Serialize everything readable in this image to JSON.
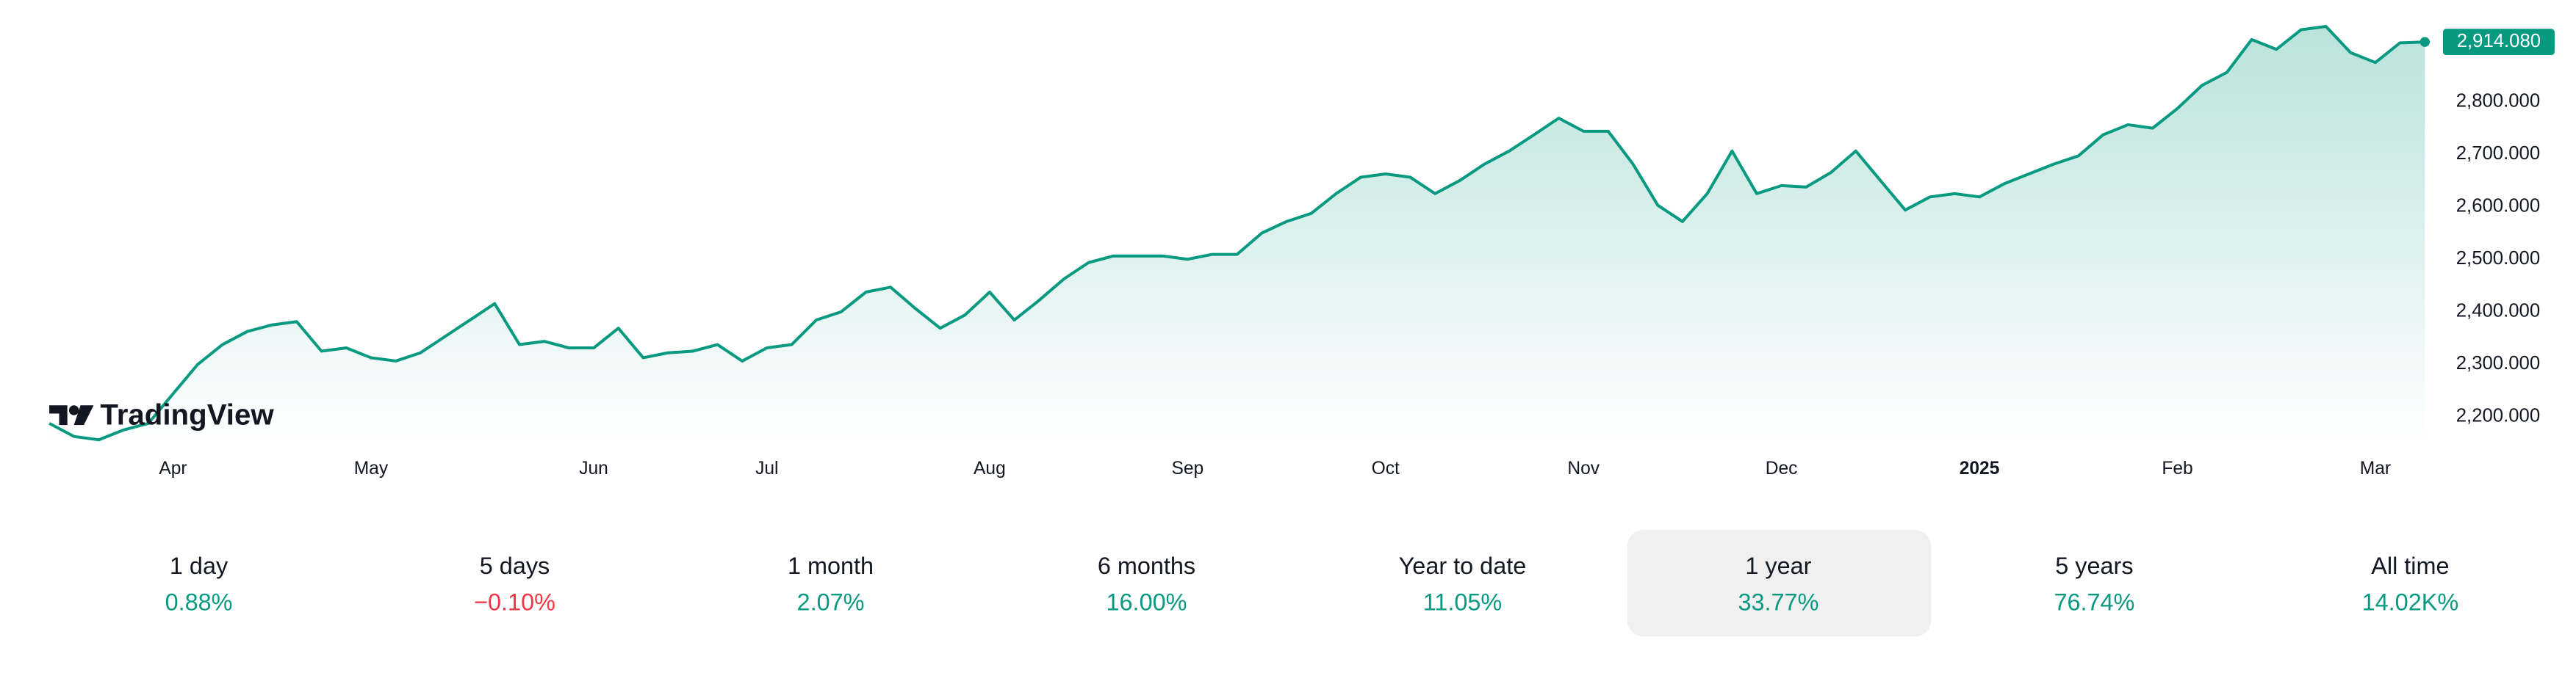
{
  "chart_data": {
    "type": "line",
    "brand": "TradingView",
    "color": "#089981",
    "categories": [
      null,
      null,
      null,
      null,
      null,
      "Apr",
      null,
      null,
      null,
      null,
      null,
      null,
      null,
      "May",
      null,
      null,
      null,
      null,
      null,
      null,
      null,
      null,
      "Jun",
      null,
      null,
      null,
      null,
      null,
      null,
      "Jul",
      null,
      null,
      null,
      null,
      null,
      null,
      null,
      null,
      "Aug",
      null,
      null,
      null,
      null,
      null,
      null,
      null,
      "Sep",
      null,
      null,
      null,
      null,
      null,
      null,
      null,
      "Oct",
      null,
      null,
      null,
      null,
      null,
      null,
      null,
      "Nov",
      null,
      null,
      null,
      null,
      null,
      null,
      null,
      "Dec",
      null,
      null,
      null,
      null,
      null,
      null,
      null,
      "2025",
      null,
      null,
      null,
      null,
      null,
      null,
      null,
      "Feb",
      null,
      null,
      null,
      null,
      null,
      null,
      null,
      "Mar",
      null,
      null
    ],
    "values": [
      2187.5,
      2162.5,
      2156.3,
      2175,
      2187.5,
      2243.8,
      2300,
      2337.5,
      2362.5,
      2375,
      2381.3,
      2325,
      2331.3,
      2312.5,
      2306.3,
      2321.9,
      2353.1,
      2384.4,
      2415.6,
      2337.5,
      2343.8,
      2331.3,
      2331.3,
      2368.8,
      2312.5,
      2321.9,
      2325,
      2337.5,
      2306.3,
      2331.3,
      2337.5,
      2384.4,
      2400,
      2437.5,
      2446.9,
      2406.3,
      2368.8,
      2393.8,
      2437.5,
      2384.4,
      2421.9,
      2462.5,
      2493.8,
      2506.3,
      2506.3,
      2506.3,
      2500,
      2509.4,
      2509.4,
      2550,
      2571.9,
      2587.5,
      2625,
      2656.3,
      2662.5,
      2656.3,
      2625,
      2650,
      2681.3,
      2706.3,
      2737.5,
      2768.8,
      2743.8,
      2743.8,
      2681.3,
      2603.1,
      2571.9,
      2625,
      2706.3,
      2625,
      2640.6,
      2637.5,
      2665.6,
      2706.3,
      2650,
      2593.8,
      2618.8,
      2625,
      2618.8,
      2643.8,
      2662.5,
      2681.3,
      2696.9,
      2737.5,
      2756.3,
      2750,
      2787.5,
      2831.3,
      2856.3,
      2918.8,
      2900,
      2937.5,
      2943.8,
      2893.8,
      2875,
      2912.5,
      2914.08
    ],
    "value_labels": [
      null,
      null,
      null,
      null,
      null,
      null,
      null,
      null,
      null,
      null,
      null,
      null,
      null,
      null,
      null,
      null,
      null,
      null,
      null,
      null,
      null,
      null,
      null,
      null,
      null,
      null,
      null,
      null,
      null,
      null,
      null,
      null,
      null,
      null,
      null,
      null,
      null,
      null,
      null,
      null,
      null,
      null,
      null,
      null,
      null,
      null,
      null,
      null,
      null,
      null,
      null,
      null,
      null,
      null,
      null,
      null,
      null,
      null,
      null,
      null,
      null,
      null,
      null,
      null,
      null,
      null,
      null,
      null,
      null,
      null,
      null,
      null,
      null,
      null,
      null,
      null,
      null,
      null,
      null,
      null,
      null,
      null,
      null,
      null,
      null,
      null,
      null,
      null,
      null,
      null,
      null,
      null,
      null,
      null,
      null,
      null,
      "2,914.080"
    ],
    "ylim": [
      2150,
      2994
    ],
    "yticks": [
      {
        "value": 2200,
        "label": "2,200.000"
      },
      {
        "value": 2300,
        "label": "2,300.000"
      },
      {
        "value": 2400,
        "label": "2,400.000"
      },
      {
        "value": 2500,
        "label": "2,500.000"
      },
      {
        "value": 2600,
        "label": "2,600.000"
      },
      {
        "value": 2700,
        "label": "2,700.000"
      },
      {
        "value": 2800,
        "label": "2,800.000"
      }
    ],
    "grid": false
  },
  "periods": [
    {
      "label": "1 day",
      "change": "0.88%"
    },
    {
      "label": "5 days",
      "change": "−0.10%"
    },
    {
      "label": "1 month",
      "change": "2.07%"
    },
    {
      "label": "6 months",
      "change": "16.00%"
    },
    {
      "label": "Year to date",
      "change": "11.05%"
    },
    {
      "label": "1 year",
      "change": "33.77%"
    },
    {
      "label": "5 years",
      "change": "76.74%"
    },
    {
      "label": "All time",
      "change": "14.02K%"
    }
  ],
  "selected_period": 5
}
